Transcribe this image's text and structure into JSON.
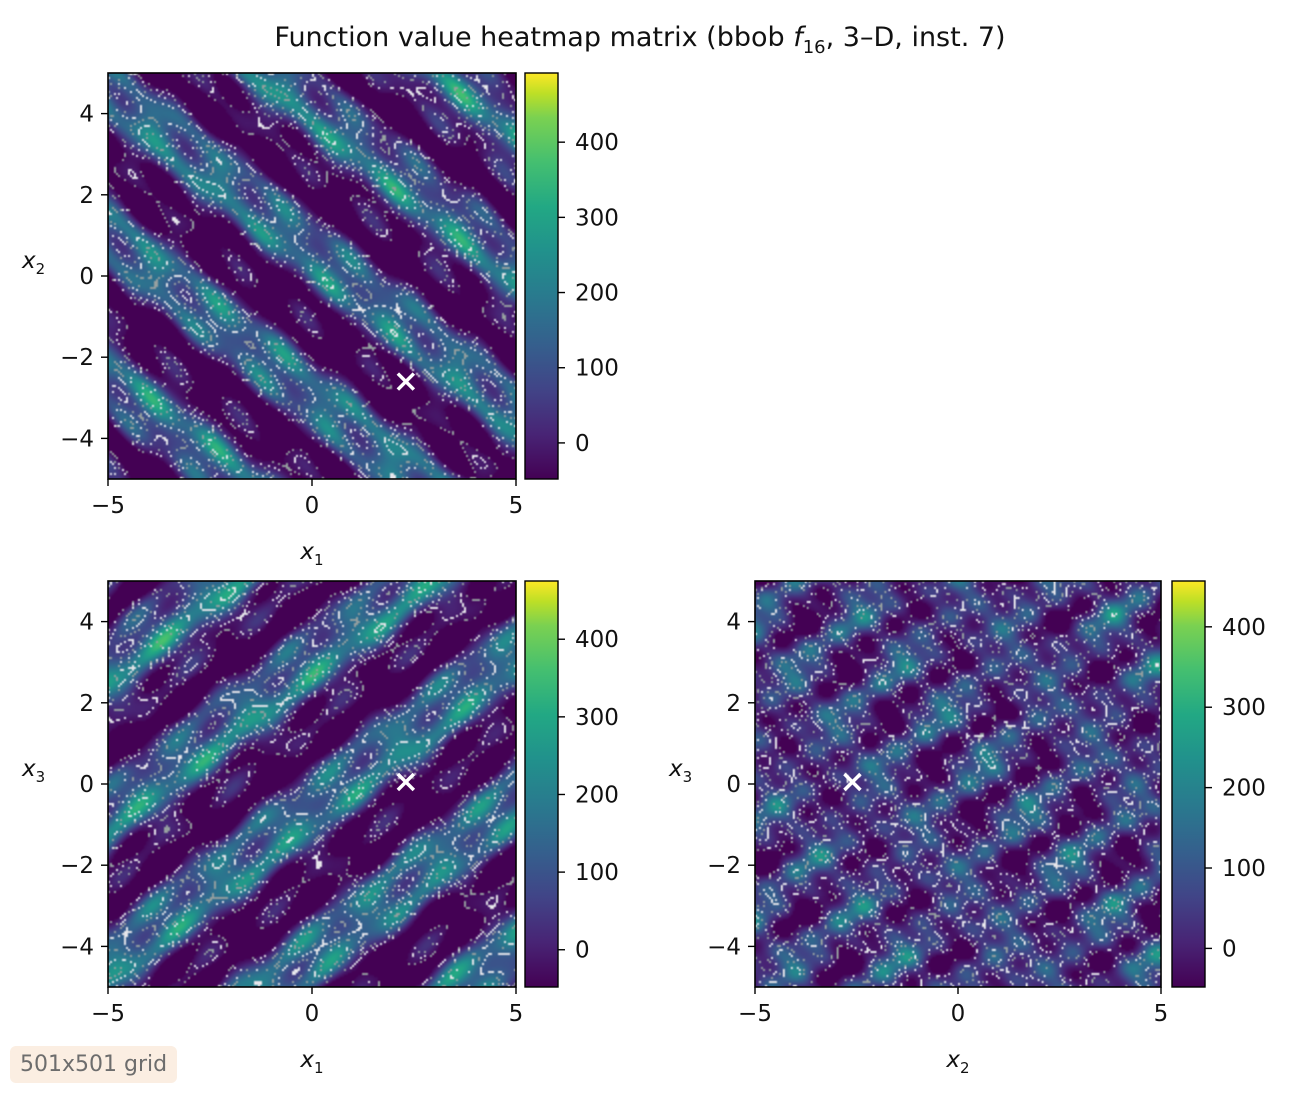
{
  "figure": {
    "title_prefix": "Function value heatmap matrix (bbob ",
    "title_fn": "f",
    "title_sub": "16",
    "title_suffix": ", 3–D, inst. 7)",
    "grid_note": "501x501 grid"
  },
  "chart_data": [
    {
      "type": "heatmap",
      "panel": "top-left",
      "xlabel": "x",
      "xlabel_sub": "1",
      "ylabel": "x",
      "ylabel_sub": "2",
      "xlim": [
        -5,
        5
      ],
      "ylim": [
        -5,
        5
      ],
      "xticks": [
        -5,
        0,
        5
      ],
      "yticks": [
        -4,
        -2,
        0,
        2,
        4
      ],
      "colorbar": {
        "range": [
          -48,
          492
        ],
        "ticks": [
          0,
          100,
          200,
          300,
          400
        ],
        "colormap": "viridis"
      },
      "marker": {
        "x": 2.3,
        "y": -2.6,
        "symbol": "x",
        "color": "#ffffff"
      },
      "pattern": "diagonal bands, descending"
    },
    {
      "type": "heatmap",
      "panel": "bottom-left",
      "xlabel": "x",
      "xlabel_sub": "1",
      "ylabel": "x",
      "ylabel_sub": "3",
      "xlim": [
        -5,
        5
      ],
      "ylim": [
        -5,
        5
      ],
      "xticks": [
        -5,
        0,
        5
      ],
      "yticks": [
        -4,
        -2,
        0,
        2,
        4
      ],
      "colorbar": {
        "range": [
          -48,
          475
        ],
        "ticks": [
          0,
          100,
          200,
          300,
          400
        ],
        "colormap": "viridis"
      },
      "marker": {
        "x": 2.3,
        "y": 0.05,
        "symbol": "x",
        "color": "#ffffff"
      },
      "pattern": "diagonal bands, ascending"
    },
    {
      "type": "heatmap",
      "panel": "bottom-right",
      "xlabel": "x",
      "xlabel_sub": "2",
      "ylabel": "x",
      "ylabel_sub": "3",
      "xlim": [
        -5,
        5
      ],
      "ylim": [
        -5,
        5
      ],
      "xticks": [
        -5,
        0,
        5
      ],
      "yticks": [
        -4,
        -2,
        0,
        2,
        4
      ],
      "colorbar": {
        "range": [
          -48,
          457
        ],
        "ticks": [
          0,
          100,
          200,
          300,
          400
        ],
        "colormap": "viridis"
      },
      "marker": {
        "x": -2.6,
        "y": 0.05,
        "symbol": "x",
        "color": "#ffffff"
      },
      "pattern": "patchy cells, slight ascending tilt"
    }
  ]
}
